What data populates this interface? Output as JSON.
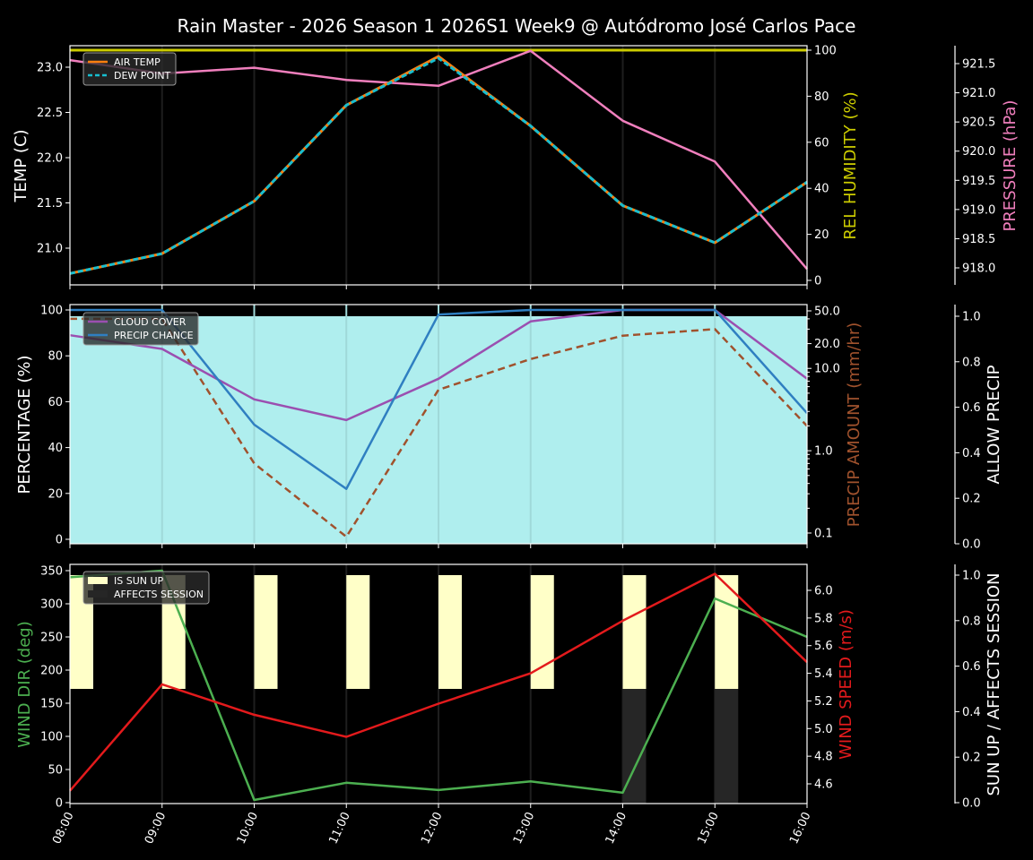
{
  "title": "Rain Master - 2026 Season 1 2026S1 Week9 @ Autódromo José Carlos Pace",
  "colors": {
    "background": "#000000",
    "air_temp": "#ff7f0e",
    "dew_point": "#17becf",
    "rel_humidity": "#cccc00",
    "pressure": "#f07fbd",
    "cloud_cover": "#9b4fb0",
    "precip_chance": "#2f7fc1",
    "precip_amount": "#a0522d",
    "allow_precip_fill": "#afeeee",
    "wind_dir": "#4caf50",
    "wind_speed": "#e31a1c",
    "sun_up": "#ffffc8",
    "affects_session": "#262626"
  },
  "chart_data": [
    {
      "type": "line",
      "panel": "temperature",
      "title": "Rain Master - 2026 Season 1 2026S1 Week9 @ Autódromo José Carlos Pace",
      "x": [
        "08:00",
        "09:00",
        "10:00",
        "11:00",
        "12:00",
        "13:00",
        "14:00",
        "15:00",
        "16:00"
      ],
      "ylabel": "TEMP (C)",
      "ylim": [
        20.6,
        23.2
      ],
      "yticks": [
        "21.0",
        "21.5",
        "22.0",
        "22.5",
        "23.0"
      ],
      "y2label": "REL HUMIDITY (%)",
      "y2lim": [
        -2,
        102
      ],
      "y2ticks": [
        "0",
        "20",
        "40",
        "60",
        "80",
        "100"
      ],
      "y3label": "PRESSURE (hPa)",
      "y3lim": [
        917.7,
        921.8
      ],
      "y3ticks": [
        "918.0",
        "918.5",
        "919.0",
        "919.5",
        "920.0",
        "920.5",
        "921.0",
        "921.5"
      ],
      "legend": [
        "AIR TEMP",
        "DEW POINT"
      ],
      "legend_position": "upper left",
      "series": [
        {
          "name": "AIR TEMP",
          "axis": "left",
          "values": [
            20.72,
            20.94,
            21.52,
            22.58,
            23.12,
            22.35,
            21.47,
            21.06,
            21.73
          ]
        },
        {
          "name": "DEW POINT",
          "axis": "left",
          "style": "dashed",
          "values": [
            20.72,
            20.94,
            21.52,
            22.58,
            23.1,
            22.35,
            21.47,
            21.06,
            21.73
          ]
        },
        {
          "name": "REL HUMIDITY",
          "axis": "right",
          "values": [
            100,
            100,
            100,
            100,
            100,
            100,
            100,
            100,
            100
          ]
        },
        {
          "name": "PRESSURE",
          "axis": "right2",
          "values": [
            921.56,
            921.33,
            921.43,
            921.22,
            921.12,
            921.72,
            920.52,
            919.82,
            917.98
          ]
        }
      ]
    },
    {
      "type": "line",
      "panel": "precipitation",
      "x": [
        "08:00",
        "09:00",
        "10:00",
        "11:00",
        "12:00",
        "13:00",
        "14:00",
        "15:00",
        "16:00"
      ],
      "ylabel": "PERCENTAGE (%)",
      "ylim": [
        -2,
        102
      ],
      "yticks": [
        "0",
        "20",
        "40",
        "60",
        "80",
        "100"
      ],
      "y2label": "PRECIP AMOUNT (mm/hr)",
      "y2scale": "log",
      "y2ticks": [
        "0.1",
        "1.0",
        "10.0",
        "20.0",
        "50.0"
      ],
      "y3label": "ALLOW PRECIP",
      "y3lim": [
        0,
        1.05
      ],
      "y3ticks": [
        "0.0",
        "0.2",
        "0.4",
        "0.6",
        "0.8",
        "1.0"
      ],
      "legend": [
        "CLOUD COVER",
        "PRECIP CHANCE"
      ],
      "legend_position": "upper left",
      "series": [
        {
          "name": "CLOUD COVER",
          "axis": "left",
          "values": [
            89,
            83,
            61,
            52,
            70,
            95,
            100,
            100,
            70
          ]
        },
        {
          "name": "PRECIP CHANCE",
          "axis": "left",
          "values": [
            100,
            100,
            50,
            22,
            98,
            100,
            100,
            100,
            55
          ]
        },
        {
          "name": "PRECIP AMOUNT",
          "axis": "right",
          "style": "dashed",
          "values": [
            40,
            40,
            0.7,
            0.09,
            5.5,
            13,
            25,
            30,
            2.0
          ]
        },
        {
          "name": "ALLOW PRECIP",
          "axis": "right2",
          "style": "fill",
          "values": [
            1,
            1,
            1,
            1,
            1,
            1,
            1,
            1,
            1
          ]
        }
      ]
    },
    {
      "type": "line",
      "panel": "wind",
      "x": [
        "08:00",
        "09:00",
        "10:00",
        "11:00",
        "12:00",
        "13:00",
        "14:00",
        "15:00",
        "16:00"
      ],
      "xlabel_rotation": 65,
      "ylabel": "WIND DIR (deg)",
      "ylim": [
        0,
        360
      ],
      "yticks": [
        "0",
        "50",
        "100",
        "150",
        "200",
        "250",
        "300",
        "350"
      ],
      "y2label": "WIND SPEED (m/s)",
      "y2lim": [
        4.45,
        6.2
      ],
      "y2ticks": [
        "4.6",
        "4.8",
        "5.0",
        "5.2",
        "5.4",
        "5.6",
        "5.8",
        "6.0"
      ],
      "y3label": "SUN UP / AFFECTS SESSION",
      "y3lim": [
        0,
        1.05
      ],
      "y3ticks": [
        "0.0",
        "0.2",
        "0.4",
        "0.6",
        "0.8",
        "1.0"
      ],
      "legend": [
        "IS SUN UP",
        "AFFECTS SESSION"
      ],
      "legend_position": "upper left",
      "series": [
        {
          "name": "WIND DIR",
          "axis": "left",
          "values": [
            340,
            350,
            4,
            30,
            19,
            32,
            15,
            308,
            250
          ]
        },
        {
          "name": "WIND SPEED",
          "axis": "right",
          "values": [
            4.55,
            5.32,
            5.1,
            4.94,
            5.18,
            5.4,
            5.78,
            6.12,
            5.48
          ]
        },
        {
          "name": "IS SUN UP",
          "axis": "right2",
          "style": "bar",
          "values": [
            1,
            1,
            1,
            1,
            1,
            1,
            1,
            1
          ]
        },
        {
          "name": "AFFECTS SESSION",
          "axis": "right2",
          "style": "bar",
          "values": [
            0,
            0,
            0,
            0,
            0,
            0,
            1,
            1
          ]
        }
      ]
    }
  ]
}
